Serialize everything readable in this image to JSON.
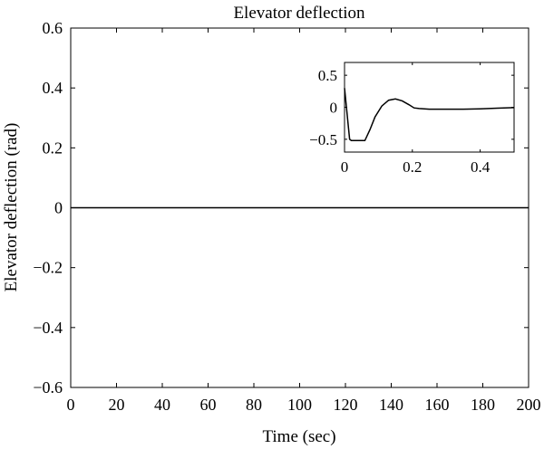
{
  "chart_data": [
    {
      "type": "line",
      "title": "Elevator deflection",
      "xlabel": "Time (sec)",
      "ylabel": "Elevator deflection (rad)",
      "xlim": [
        0,
        200
      ],
      "ylim": [
        -0.6,
        0.6
      ],
      "xticks": [
        0,
        20,
        40,
        60,
        80,
        100,
        120,
        140,
        160,
        180,
        200
      ],
      "xtick_labels": [
        "0",
        "20",
        "40",
        "60",
        "80",
        "100",
        "120",
        "140",
        "160",
        "180",
        "200"
      ],
      "yticks": [
        0.6,
        0.4,
        0.2,
        0,
        -0.2,
        -0.4,
        -0.6
      ],
      "ytick_labels": [
        "0.6",
        "0.4",
        "0.2",
        "0",
        "−0.2",
        "−0.4",
        "−0.6"
      ],
      "grid": false,
      "legend": "none",
      "line_color": "#000000",
      "series": [
        {
          "x": [
            0,
            200
          ],
          "y": [
            0,
            0
          ]
        }
      ]
    },
    {
      "type": "line",
      "placement": "inset-top-right",
      "title": "",
      "xlabel": "",
      "ylabel": "",
      "xlim": [
        0,
        0.5
      ],
      "ylim": [
        -0.7,
        0.7
      ],
      "xticks": [
        0,
        0.2,
        0.4
      ],
      "xtick_labels": [
        "0",
        "0.2",
        "0.4"
      ],
      "yticks": [
        0.5,
        0,
        -0.5
      ],
      "ytick_labels": [
        "0.5",
        "0",
        "−0.5"
      ],
      "grid": false,
      "legend": "none",
      "line_color": "#000000",
      "series": [
        {
          "x": [
            0,
            0.015,
            0.02,
            0.03,
            0.06,
            0.075,
            0.09,
            0.11,
            0.13,
            0.15,
            0.17,
            0.19,
            0.205,
            0.22,
            0.25,
            0.3,
            0.35,
            0.4,
            0.45,
            0.5
          ],
          "y": [
            0.3,
            -0.5,
            -0.52,
            -0.52,
            -0.52,
            -0.35,
            -0.15,
            0.02,
            0.11,
            0.13,
            0.1,
            0.04,
            -0.01,
            -0.02,
            -0.03,
            -0.03,
            -0.03,
            -0.025,
            -0.015,
            -0.005
          ]
        }
      ]
    }
  ]
}
